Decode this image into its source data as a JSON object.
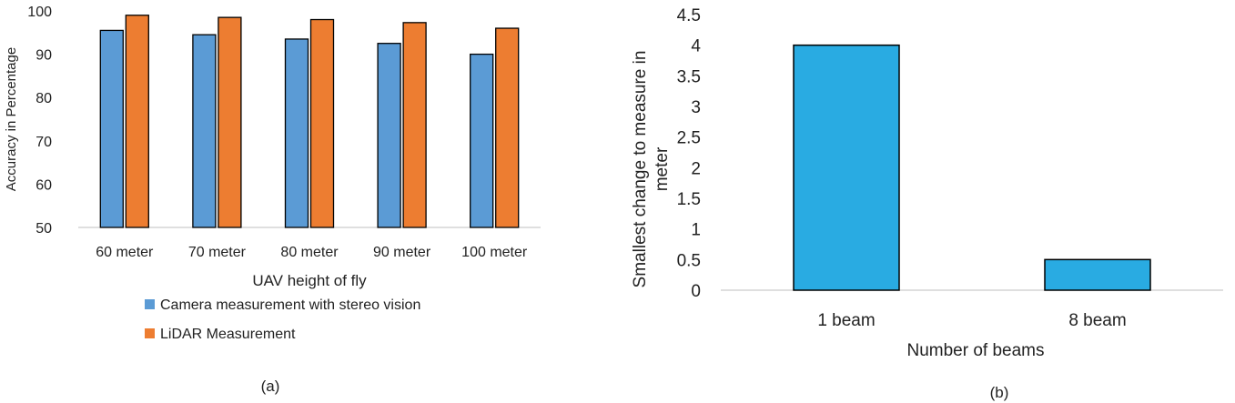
{
  "chart_data": [
    {
      "type": "bar",
      "panel_label": "(a)",
      "title": "",
      "xlabel": "UAV height of fly",
      "ylabel": "Accuracy in Percentage",
      "ylim": [
        50,
        100
      ],
      "yticks": [
        50,
        60,
        70,
        80,
        90,
        100
      ],
      "categories": [
        "60 meter",
        "70 meter",
        "80 meter",
        "90 meter",
        "100 meter"
      ],
      "series": [
        {
          "name": "Camera measurement with stereo vision",
          "color": "#5b9bd5",
          "values": [
            95.5,
            94.5,
            93.5,
            92.5,
            90
          ]
        },
        {
          "name": "LiDAR Measurement",
          "color": "#ed7d31",
          "values": [
            99,
            98.5,
            98,
            97.3,
            96
          ]
        }
      ],
      "grid": false,
      "legend_position": "bottom"
    },
    {
      "type": "bar",
      "panel_label": "(b)",
      "title": "",
      "xlabel": "Number of beams",
      "ylabel": "Smallest change to measure in meter",
      "ylabel_lines": [
        "Smallest change to measure in",
        "meter"
      ],
      "ylim": [
        0,
        4.5
      ],
      "yticks": [
        "0",
        "0.5",
        "1",
        "1.5",
        "2",
        "2.5",
        "3",
        "3.5",
        "4",
        "4.5"
      ],
      "categories": [
        "1 beam",
        "8 beam"
      ],
      "values": [
        4,
        0.5
      ],
      "color": "#29abe2",
      "grid": false
    }
  ]
}
